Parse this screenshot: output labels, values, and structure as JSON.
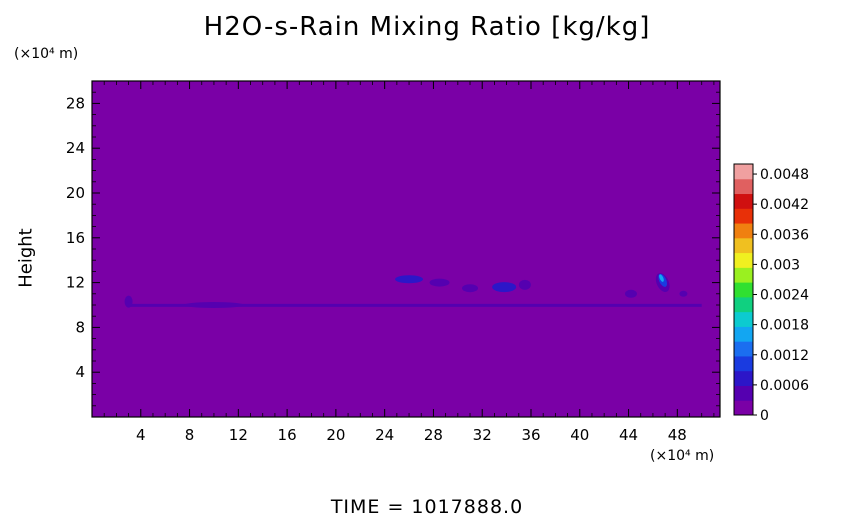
{
  "chart_data": {
    "type": "heatmap",
    "title": "H2O-s-Rain Mixing Ratio [kg/kg]",
    "ylabel": "Height",
    "y_unit": "(×10⁴ m)",
    "x_unit": "(×10⁴ m)",
    "footer": "TIME = 1017888.0",
    "xlim": [
      0,
      51.5
    ],
    "ylim": [
      0,
      30
    ],
    "x_ticks": [
      "4",
      "8",
      "12",
      "16",
      "20",
      "24",
      "28",
      "32",
      "36",
      "40",
      "44",
      "48"
    ],
    "y_ticks": [
      "4",
      "8",
      "12",
      "16",
      "20",
      "24",
      "28"
    ],
    "colorbar": {
      "range": [
        0,
        0.005
      ],
      "tick_labels": [
        "0",
        "0.0006",
        "0.0012",
        "0.0018",
        "0.0024",
        "0.003",
        "0.0036",
        "0.0042",
        "0.0048"
      ],
      "colors": [
        "#7a00a6",
        "#5500b0",
        "#2c16c8",
        "#1a3be0",
        "#1b6ef0",
        "#12a6f2",
        "#0ccbd0",
        "#10d080",
        "#30e030",
        "#9af020",
        "#f0f020",
        "#f0c020",
        "#f08010",
        "#e83008",
        "#d01010",
        "#e06060",
        "#f0a0a0"
      ]
    },
    "background_value": 0,
    "background_color": "#7a00a6",
    "features": [
      {
        "x": [
          3,
          50
        ],
        "y": [
          9.5,
          10.5
        ],
        "value": 0.0003,
        "desc": "thin layer near y≈10"
      },
      {
        "x": [
          25,
          36
        ],
        "y": [
          11,
          13
        ],
        "value": 0.0006
      },
      {
        "x": [
          46,
          47.5
        ],
        "y": [
          11.5,
          13.5
        ],
        "value": 0.0015
      }
    ]
  }
}
